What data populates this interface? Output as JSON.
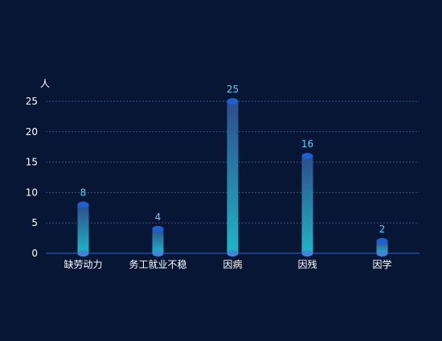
{
  "chart_data": {
    "type": "bar",
    "y_unit_label": "人",
    "categories": [
      "缺劳动力",
      "务工就业不稳",
      "因病",
      "因残",
      "因学"
    ],
    "values": [
      8,
      4,
      25,
      16,
      2
    ],
    "ylim": [
      0,
      25
    ],
    "y_ticks": [
      0,
      5,
      10,
      15,
      20,
      25
    ],
    "grid": true,
    "colors": {
      "background": "#071634",
      "axis_text": "#ffffff",
      "gridline": "#2a4f9e",
      "axis_line": "#2f66c8",
      "bar_top": "#2d4d8c",
      "bar_bottom": "#1fb6c6",
      "cap": "#1f5fd0",
      "base": "#3f86d8",
      "value_label": "#4fd2ff"
    }
  }
}
